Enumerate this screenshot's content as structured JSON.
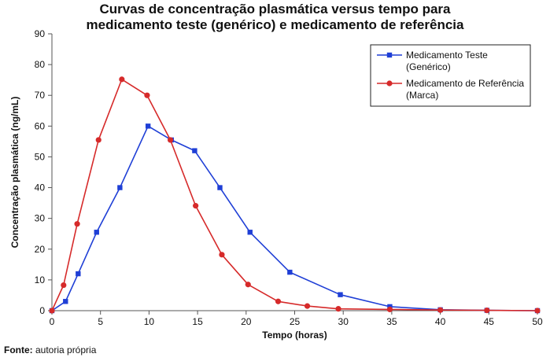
{
  "chart_data": {
    "type": "line",
    "title_line1": "Curvas de concentração plasmática versus tempo para",
    "title_line2": "medicamento teste (genérico) e medicamento de referência",
    "xlabel": "Tempo (horas)",
    "ylabel": "Concentração plasmática (ng/mL)",
    "xlim": [
      0,
      50
    ],
    "ylim": [
      0,
      90
    ],
    "xticks": [
      0,
      5,
      10,
      15,
      20,
      25,
      30,
      35,
      40,
      45,
      50
    ],
    "yticks": [
      0,
      10,
      20,
      30,
      40,
      50,
      60,
      70,
      80,
      90
    ],
    "grid": false,
    "legend_position": "top-right",
    "series": [
      {
        "name_line1": "Medicamento Teste",
        "name_line2": "(Genérico)",
        "color": "#1f3fd6",
        "marker": "square",
        "x": [
          0,
          1.4,
          2.7,
          4.6,
          7.0,
          9.9,
          12.3,
          14.7,
          17.3,
          20.4,
          24.5,
          29.7,
          34.8,
          40.0,
          44.8,
          50.0
        ],
        "y": [
          0,
          3,
          12,
          25.5,
          40,
          60,
          55.5,
          52,
          40,
          25.5,
          12.5,
          5.2,
          1.3,
          0.3,
          0.1,
          0
        ]
      },
      {
        "name_line1": "Medicamento de Referência",
        "name_line2": "(Marca)",
        "color": "#d62a2a",
        "marker": "circle",
        "x": [
          0,
          1.2,
          2.6,
          4.8,
          7.2,
          9.8,
          12.2,
          14.8,
          17.5,
          20.2,
          23.3,
          26.3,
          29.5,
          34.8,
          40.0,
          44.8,
          50.0
        ],
        "y": [
          0,
          8.3,
          28.2,
          55.5,
          75.2,
          70,
          55.5,
          34.1,
          18.2,
          8.5,
          3,
          1.5,
          0.6,
          0.4,
          0.2,
          0.1,
          0
        ]
      }
    ]
  },
  "footer": {
    "source_label": "Fonte:",
    "source_text": " autoria própria"
  }
}
